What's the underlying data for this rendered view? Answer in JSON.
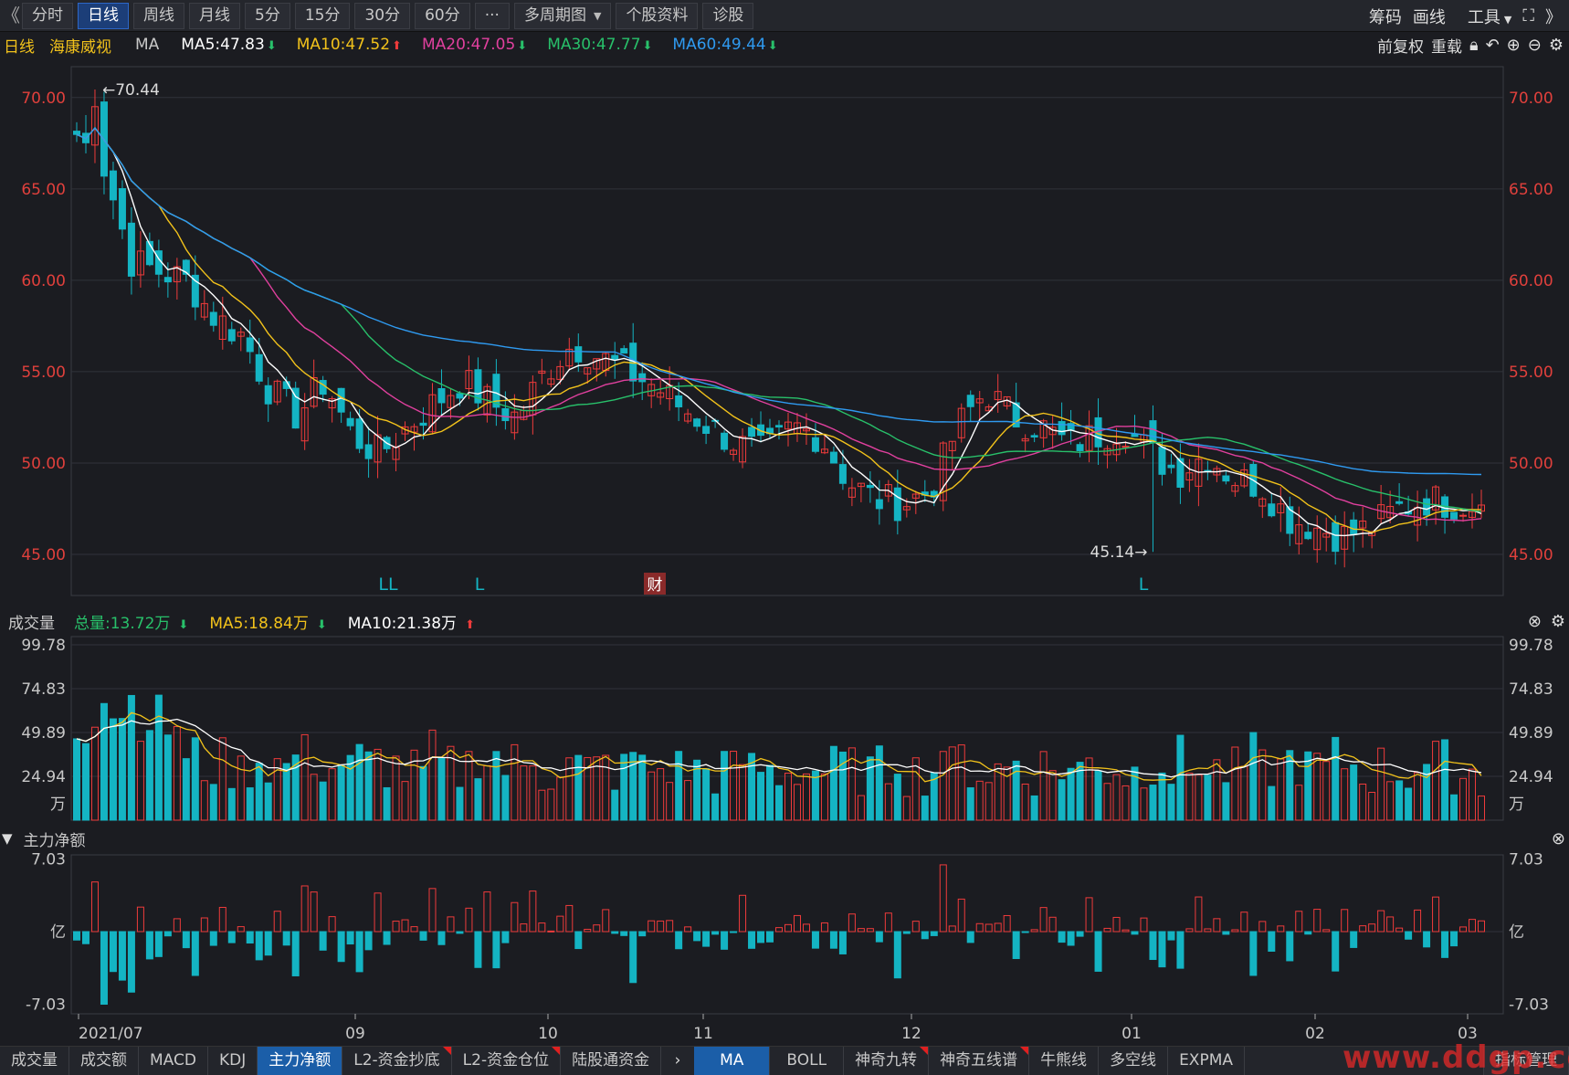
{
  "toolbar": {
    "left_chevron": "《",
    "buttons": [
      "分时",
      "日线",
      "周线",
      "月线",
      "5分",
      "15分",
      "30分",
      "60分",
      "···",
      "多周期图",
      "个股资料",
      "诊股"
    ],
    "active": "日线",
    "dropdown_button": "多周期图",
    "right": [
      "筹码",
      "画线",
      "工具"
    ]
  },
  "legend": {
    "period": "日线",
    "stock": "海康威视",
    "indicator": "MA",
    "ma": [
      {
        "label": "MA5:47.83",
        "color": "#ffffff",
        "arrow": "down"
      },
      {
        "label": "MA10:47.52",
        "color": "#f2c21b",
        "arrow": "up"
      },
      {
        "label": "MA20:47.05",
        "color": "#e0409e",
        "arrow": "down"
      },
      {
        "label": "MA30:47.77",
        "color": "#28c06a",
        "arrow": "down"
      },
      {
        "label": "MA60:49.44",
        "color": "#2f9af0",
        "arrow": "down"
      }
    ],
    "right": [
      "前复权",
      "重载"
    ]
  },
  "volume_bar": {
    "title": "成交量",
    "items": [
      {
        "label": "总量:13.72万",
        "color": "#28c06a",
        "arrow": "down"
      },
      {
        "label": "MA5:18.84万",
        "color": "#f2c21b",
        "arrow": "down"
      },
      {
        "label": "MA10:21.38万",
        "color": "#ffffff",
        "arrow": "up"
      }
    ]
  },
  "flow_bar": {
    "title": "主力净额"
  },
  "bottom_tabs": {
    "left": [
      "成交量",
      "成交额",
      "MACD",
      "KDJ",
      "主力净额",
      "L2-资金抄底",
      "L2-资金仓位",
      "陆股通资金"
    ],
    "left_active": "主力净额",
    "left_flagged": [
      "L2-资金抄底",
      "L2-资金仓位"
    ],
    "right": [
      "MA",
      "BOLL",
      "神奇九转",
      "神奇五线谱",
      "牛熊线",
      "多空线",
      "EXPMA",
      "指标管理"
    ],
    "right_active": "MA",
    "right_flagged": [
      "神奇九转",
      "神奇五线谱"
    ],
    "more": "》"
  },
  "watermark": "www.ddgp.com",
  "colors": {
    "up": "#ef3b3b",
    "down": "#14b4c3",
    "grid": "#30323a",
    "axis_price": "#e0403c",
    "axis_gray": "#c8c8c8"
  },
  "chart_data": [
    {
      "type": "candlestick",
      "title": "海康威视 日线",
      "ylim": [
        45,
        70.44
      ],
      "y_ticks": [
        "70.00",
        "65.00",
        "60.00",
        "55.00",
        "50.00",
        "45.00"
      ],
      "x_tick_labels": [
        "2021/07",
        "09",
        "10",
        "11",
        "12",
        "01",
        "02",
        "03"
      ],
      "annotations": [
        {
          "text": "←70.44",
          "value": 70.44,
          "kind": "high"
        },
        {
          "text": "45.14→",
          "value": 45.14,
          "kind": "low"
        }
      ],
      "markers": [
        "LL",
        "L",
        "财",
        "L"
      ],
      "series_legend": [
        "MA5",
        "MA10",
        "MA20",
        "MA30",
        "MA60"
      ],
      "close_samples": [
        68.0,
        66.2,
        61.0,
        60.5,
        60.0,
        58.0,
        57.0,
        54.0,
        52.6,
        54.5,
        51.5,
        50.5,
        52.0,
        53.3,
        54.5,
        53.3,
        52.5,
        55.0,
        56.5,
        55.8,
        55.0,
        54.2,
        53.0,
        52.0,
        51.0,
        50.5,
        52.0,
        51.5,
        49.0,
        48.0,
        47.8,
        48.5,
        52.0,
        54.0,
        52.5,
        52.0,
        51.0,
        51.5,
        52.0,
        50.5,
        49.5,
        50.5,
        49.2,
        48.8,
        47.0,
        46.5,
        46.0,
        46.5,
        47.5,
        48.0,
        47.8,
        47.7
      ]
    },
    {
      "type": "bar",
      "title": "成交量",
      "unit": "万",
      "ylim": [
        0,
        99.78
      ],
      "y_ticks": [
        "99.78",
        "74.83",
        "49.89",
        "24.94"
      ],
      "series_legend": [
        "总量",
        "MA5",
        "MA10"
      ],
      "latest": {
        "total": 13.72,
        "ma5": 18.84,
        "ma10": 21.38
      }
    },
    {
      "type": "bar",
      "title": "主力净额",
      "unit": "亿",
      "ylim": [
        -7.03,
        7.03
      ],
      "y_ticks": [
        "7.03",
        "-7.03"
      ]
    }
  ]
}
